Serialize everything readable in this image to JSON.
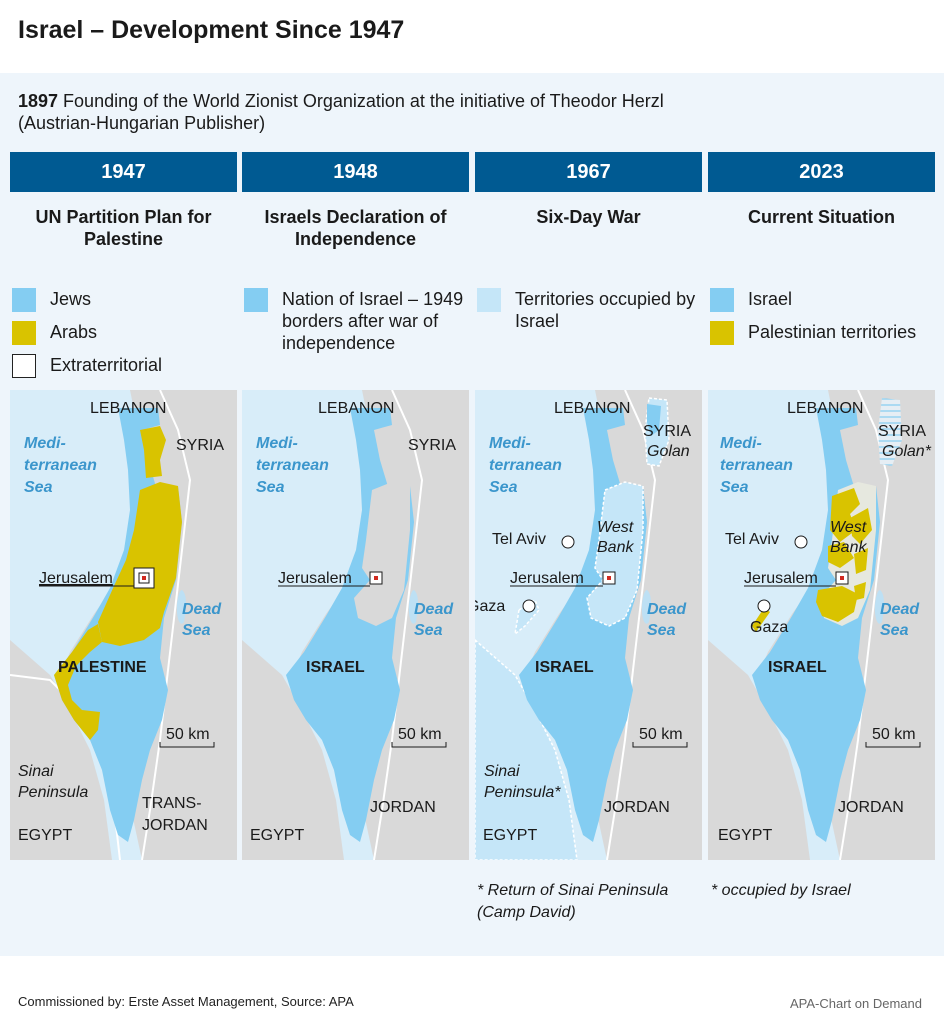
{
  "title": "Israel – Development Since 1947",
  "intro": {
    "year": "1897",
    "text": " Founding of the World Zionist Organization at the initiative of Theodor Herzl (Austrian-Hungarian Publisher)"
  },
  "colors": {
    "jews": "#84cdf2",
    "arabs": "#d9c300",
    "occupied": "#c5e6f8",
    "yearbar": "#005a92",
    "land": "#d9d9d9",
    "sea": "#d8edf9"
  },
  "columns": [
    {
      "year": "1947",
      "subtitle": "UN Partition Plan for Palestine",
      "legend": [
        {
          "label": "Jews",
          "color": "#84cdf2"
        },
        {
          "label": "Arabs",
          "color": "#d9c300"
        },
        {
          "label": "Extraterritorial",
          "color": "#ffffff"
        }
      ],
      "labels": {
        "lebanon": "LEBANON",
        "syria": "SYRIA",
        "sea": [
          "Medi-",
          "terranean",
          "Sea"
        ],
        "jerusalem": "Jerusalem",
        "dead_sea": [
          "Dead",
          "Sea"
        ],
        "country": "PALESTINE",
        "scale": "50 km",
        "sinai": [
          "Sinai",
          "Peninsula"
        ],
        "transjordan": [
          "TRANS-",
          "JORDAN"
        ],
        "egypt": "EGYPT"
      }
    },
    {
      "year": "1948",
      "subtitle": "Israels Declaration of Independence",
      "legend": [
        {
          "label": "Nation of Israel – 1949 borders after war of independence",
          "color": "#84cdf2"
        }
      ],
      "labels": {
        "lebanon": "LEBANON",
        "syria": "SYRIA",
        "sea": [
          "Medi-",
          "terranean",
          "Sea"
        ],
        "jerusalem": "Jerusalem",
        "dead_sea": [
          "Dead",
          "Sea"
        ],
        "country": "ISRAEL",
        "scale": "50 km",
        "jordan": "JORDAN",
        "egypt": "EGYPT"
      }
    },
    {
      "year": "1967",
      "subtitle": "Six-Day War",
      "legend": [
        {
          "label": "Territories occupied by Israel",
          "color": "#c5e6f8"
        }
      ],
      "labels": {
        "lebanon": "LEBANON",
        "syria": "SYRIA",
        "golan": "Golan",
        "sea": [
          "Medi-",
          "terranean",
          "Sea"
        ],
        "tel_aviv": "Tel Aviv",
        "west_bank": [
          "West",
          "Bank"
        ],
        "jerusalem": "Jerusalem",
        "gaza": "Gaza",
        "dead_sea": [
          "Dead",
          "Sea"
        ],
        "country": "ISRAEL",
        "scale": "50 km",
        "sinai": [
          "Sinai",
          "Peninsula*"
        ],
        "jordan": "JORDAN",
        "egypt": "EGYPT"
      },
      "note": "* Return of Sinai Peninsula (Camp David)"
    },
    {
      "year": "2023",
      "subtitle": "Current Situation",
      "legend": [
        {
          "label": "Israel",
          "color": "#84cdf2"
        },
        {
          "label": "Palestinian territories",
          "color": "#d9c300"
        }
      ],
      "labels": {
        "lebanon": "LEBANON",
        "syria": "SYRIA",
        "golan": "Golan*",
        "sea": [
          "Medi-",
          "terranean",
          "Sea"
        ],
        "tel_aviv": "Tel Aviv",
        "west_bank": [
          "West",
          "Bank"
        ],
        "jerusalem": "Jerusalem",
        "gaza": "Gaza",
        "dead_sea": [
          "Dead",
          "Sea"
        ],
        "country": "ISRAEL",
        "scale": "50 km",
        "jordan": "JORDAN",
        "egypt": "EGYPT"
      },
      "note": "* occupied by Israel"
    }
  ],
  "footer": {
    "left": "Commissioned by: Erste Asset Management, Source: APA",
    "right": "APA-Chart on Demand"
  }
}
